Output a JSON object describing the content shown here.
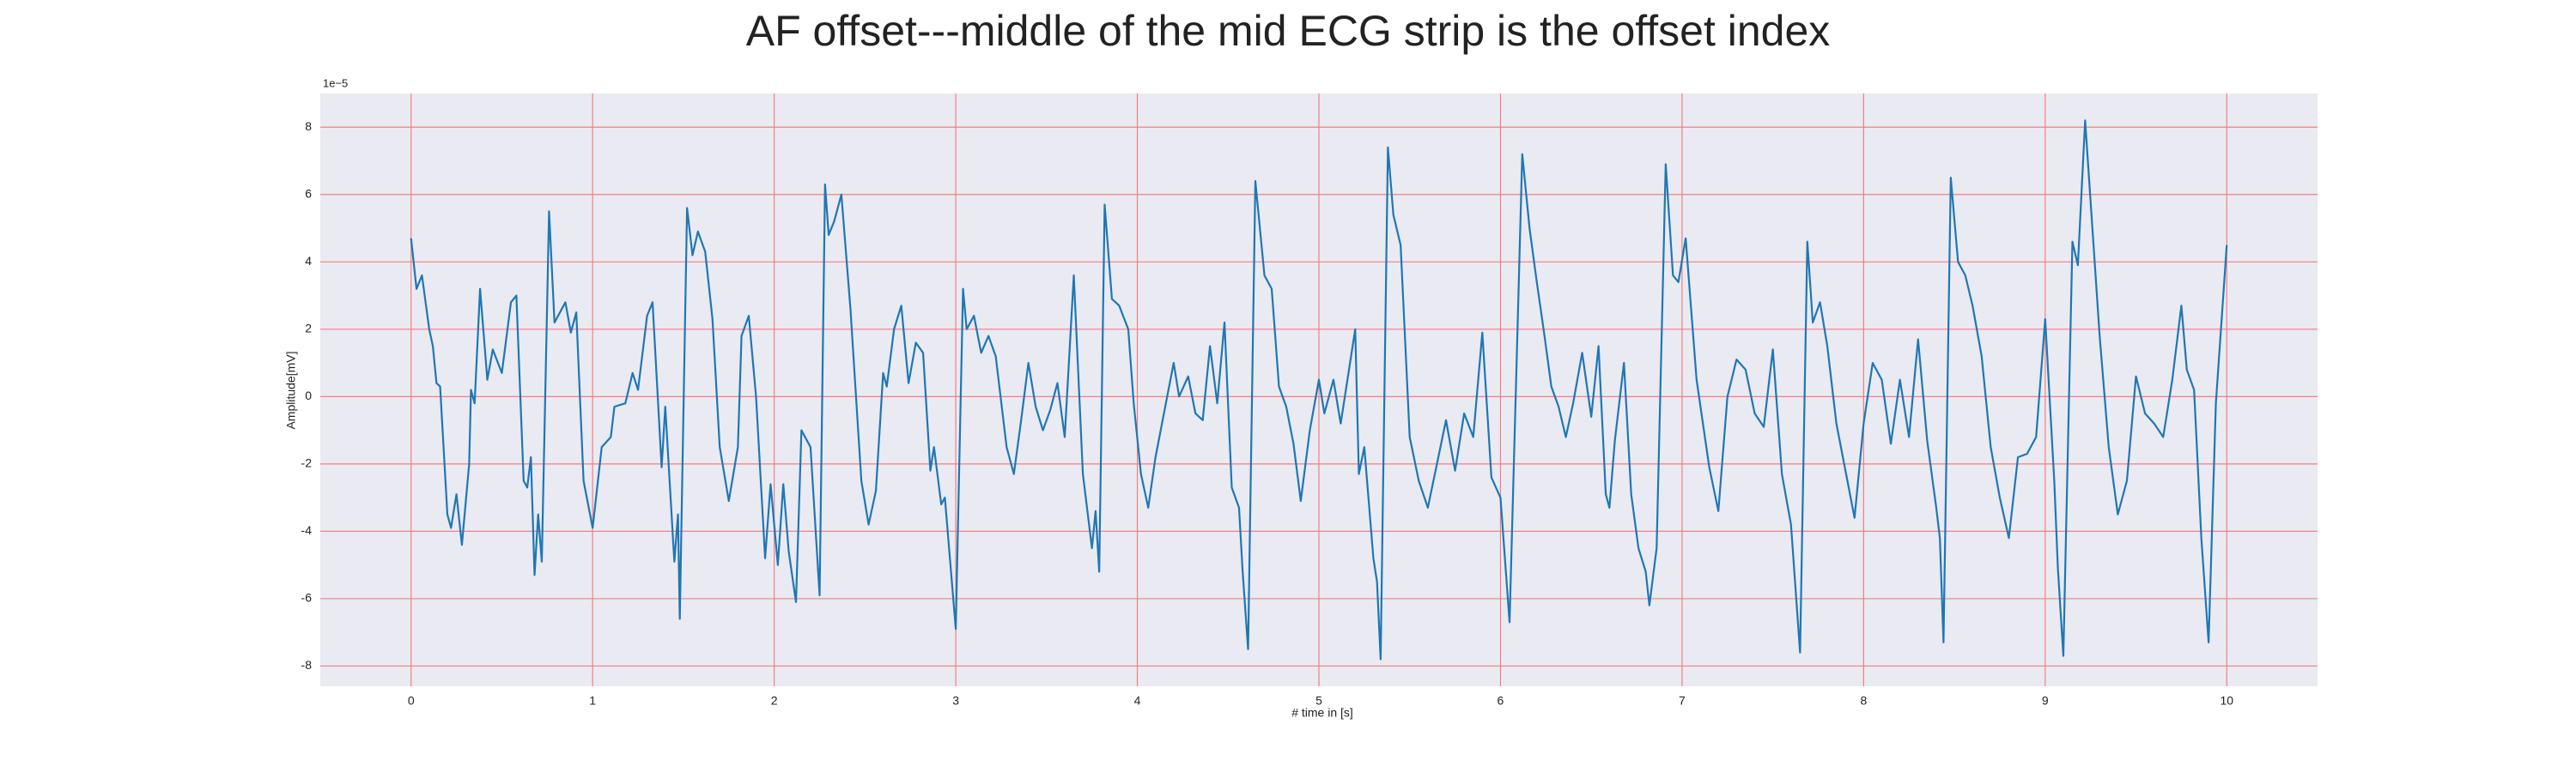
{
  "chart_data": {
    "type": "line",
    "title": "AF offset---middle of the mid ECG strip is the offset index",
    "x_label": "# time in [s]",
    "y_label": "Amplitude[mV]",
    "y_offset_label": "1e−5",
    "xlim": [
      -0.5,
      10.5
    ],
    "ylim": [
      -8.6,
      9
    ],
    "xticks": [
      0,
      1,
      2,
      3,
      4,
      5,
      6,
      7,
      8,
      9,
      10
    ],
    "yticks": [
      -8,
      -6,
      -4,
      -2,
      0,
      2,
      4,
      6,
      8
    ],
    "grid": true,
    "grid_color": "#f08080",
    "background": "#eaeaf2",
    "x": [
      0,
      0.03,
      0.06,
      0.1,
      0.12,
      0.14,
      0.16,
      0.2,
      0.22,
      0.25,
      0.28,
      0.32,
      0.33,
      0.35,
      0.38,
      0.42,
      0.45,
      0.5,
      0.55,
      0.58,
      0.62,
      0.64,
      0.66,
      0.68,
      0.7,
      0.72,
      0.76,
      0.79,
      0.82,
      0.85,
      0.88,
      0.91,
      0.95,
      1.0,
      1.05,
      1.1,
      1.12,
      1.18,
      1.22,
      1.25,
      1.3,
      1.33,
      1.38,
      1.4,
      1.45,
      1.47,
      1.48,
      1.52,
      1.55,
      1.58,
      1.62,
      1.66,
      1.7,
      1.75,
      1.8,
      1.82,
      1.86,
      1.9,
      1.95,
      1.98,
      2.02,
      2.05,
      2.08,
      2.12,
      2.15,
      2.2,
      2.25,
      2.28,
      2.3,
      2.33,
      2.37,
      2.42,
      2.48,
      2.52,
      2.56,
      2.6,
      2.62,
      2.66,
      2.7,
      2.74,
      2.78,
      2.82,
      2.86,
      2.88,
      2.92,
      2.94,
      3.0,
      3.04,
      3.06,
      3.1,
      3.14,
      3.18,
      3.22,
      3.28,
      3.32,
      3.36,
      3.4,
      3.44,
      3.48,
      3.52,
      3.56,
      3.6,
      3.65,
      3.7,
      3.75,
      3.77,
      3.79,
      3.82,
      3.86,
      3.9,
      3.95,
      3.98,
      4.02,
      4.06,
      4.1,
      4.15,
      4.2,
      4.23,
      4.28,
      4.32,
      4.36,
      4.4,
      4.44,
      4.48,
      4.52,
      4.56,
      4.58,
      4.61,
      4.65,
      4.7,
      4.74,
      4.78,
      4.82,
      4.86,
      4.9,
      4.95,
      5.0,
      5.03,
      5.08,
      5.12,
      5.2,
      5.22,
      5.25,
      5.3,
      5.32,
      5.34,
      5.38,
      5.41,
      5.45,
      5.5,
      5.55,
      5.6,
      5.65,
      5.7,
      5.75,
      5.8,
      5.85,
      5.9,
      5.95,
      6.0,
      6.05,
      6.12,
      6.16,
      6.2,
      6.24,
      6.28,
      6.32,
      6.36,
      6.4,
      6.45,
      6.5,
      6.54,
      6.58,
      6.6,
      6.63,
      6.68,
      6.72,
      6.76,
      6.8,
      6.82,
      6.86,
      6.91,
      6.95,
      6.98,
      7.02,
      7.08,
      7.15,
      7.2,
      7.25,
      7.3,
      7.35,
      7.4,
      7.45,
      7.5,
      7.55,
      7.6,
      7.65,
      7.69,
      7.72,
      7.76,
      7.8,
      7.85,
      7.9,
      7.95,
      8.0,
      8.05,
      8.1,
      8.15,
      8.2,
      8.25,
      8.3,
      8.35,
      8.4,
      8.42,
      8.44,
      8.48,
      8.52,
      8.56,
      8.6,
      8.65,
      8.7,
      8.75,
      8.8,
      8.85,
      8.9,
      8.95,
      9.0,
      9.05,
      9.07,
      9.1,
      9.15,
      9.18,
      9.22,
      9.26,
      9.3,
      9.35,
      9.4,
      9.45,
      9.5,
      9.55,
      9.6,
      9.65,
      9.7,
      9.75,
      9.78,
      9.82,
      9.86,
      9.9,
      9.94,
      10.0
    ],
    "series": [
      {
        "color": "#1f77b4",
        "values": [
          4.7,
          3.2,
          3.6,
          2,
          1.5,
          0.4,
          0.3,
          -3.5,
          -3.9,
          -2.9,
          -4.4,
          -2,
          0.2,
          -0.2,
          3.2,
          0.5,
          1.4,
          0.7,
          2.8,
          3.0,
          -2.5,
          -2.7,
          -1.8,
          -5.3,
          -3.5,
          -4.9,
          5.5,
          2.2,
          2.5,
          2.8,
          1.9,
          2.5,
          -2.5,
          -3.9,
          -1.5,
          -1.2,
          -0.3,
          -0.2,
          0.7,
          0.2,
          2.4,
          2.8,
          -2.1,
          -0.3,
          -4.9,
          -3.5,
          -6.6,
          5.6,
          4.2,
          4.9,
          4.3,
          2.3,
          -1.5,
          -3.1,
          -1.5,
          1.8,
          2.4,
          0,
          -4.8,
          -2.6,
          -5,
          -2.6,
          -4.6,
          -6.1,
          -1,
          -1.5,
          -5.9,
          6.3,
          4.8,
          5.2,
          6,
          2.6,
          -2.5,
          -3.8,
          -2.8,
          0.7,
          0.3,
          2.0,
          2.7,
          0.4,
          1.6,
          1.3,
          -2.2,
          -1.5,
          -3.2,
          -3,
          -6.9,
          3.2,
          2.0,
          2.4,
          1.3,
          1.8,
          1.2,
          -1.5,
          -2.3,
          -0.7,
          1.0,
          -0.3,
          -1.0,
          -0.4,
          0.4,
          -1.2,
          3.6,
          -2.3,
          -4.5,
          -3.4,
          -5.2,
          5.7,
          2.9,
          2.7,
          2,
          -0.2,
          -2.3,
          -3.3,
          -1.8,
          -0.4,
          1,
          0,
          0.6,
          -0.5,
          -0.7,
          1.5,
          -0.2,
          2.2,
          -2.7,
          -3.3,
          -5.2,
          -7.5,
          6.4,
          3.6,
          3.2,
          0.3,
          -0.3,
          -1.4,
          -3.1,
          -1,
          0.5,
          -0.5,
          0.5,
          -0.8,
          2,
          -2.3,
          -1.5,
          -4.8,
          -5.5,
          -7.8,
          7.4,
          5.4,
          4.5,
          -1.2,
          -2.5,
          -3.3,
          -2,
          -0.7,
          -2.2,
          -0.5,
          -1.2,
          1.9,
          -2.4,
          -3,
          -6.7,
          7.2,
          5,
          3.4,
          1.9,
          0.3,
          -0.3,
          -1.2,
          -0.2,
          1.3,
          -0.6,
          1.5,
          -2.9,
          -3.3,
          -1.3,
          1.0,
          -2.9,
          -4.5,
          -5.2,
          -6.2,
          -4.5,
          6.9,
          3.6,
          3.4,
          4.7,
          0.5,
          -2.1,
          -3.4,
          0,
          1.1,
          0.8,
          -0.5,
          -0.9,
          1.4,
          -2.3,
          -3.8,
          -7.6,
          4.6,
          2.2,
          2.8,
          1.5,
          -0.8,
          -2.2,
          -3.6,
          -0.8,
          1,
          0.5,
          -1.4,
          0.5,
          -1.2,
          1.7,
          -1.3,
          -3.3,
          -4.2,
          -7.3,
          6.5,
          4,
          3.6,
          2.7,
          1.2,
          -1.5,
          -3,
          -4.2,
          -1.8,
          -1.7,
          -1.2,
          2.3,
          -2.5,
          -5.1,
          -7.7,
          4.6,
          3.9,
          8.2,
          5,
          1.8,
          -1.5,
          -3.5,
          -2.5,
          0.6,
          -0.5,
          -0.8,
          -1.2,
          0.5,
          2.7,
          0.8,
          0.2,
          -4.2,
          -7.3,
          -0.2,
          4.5
        ]
      }
    ]
  }
}
